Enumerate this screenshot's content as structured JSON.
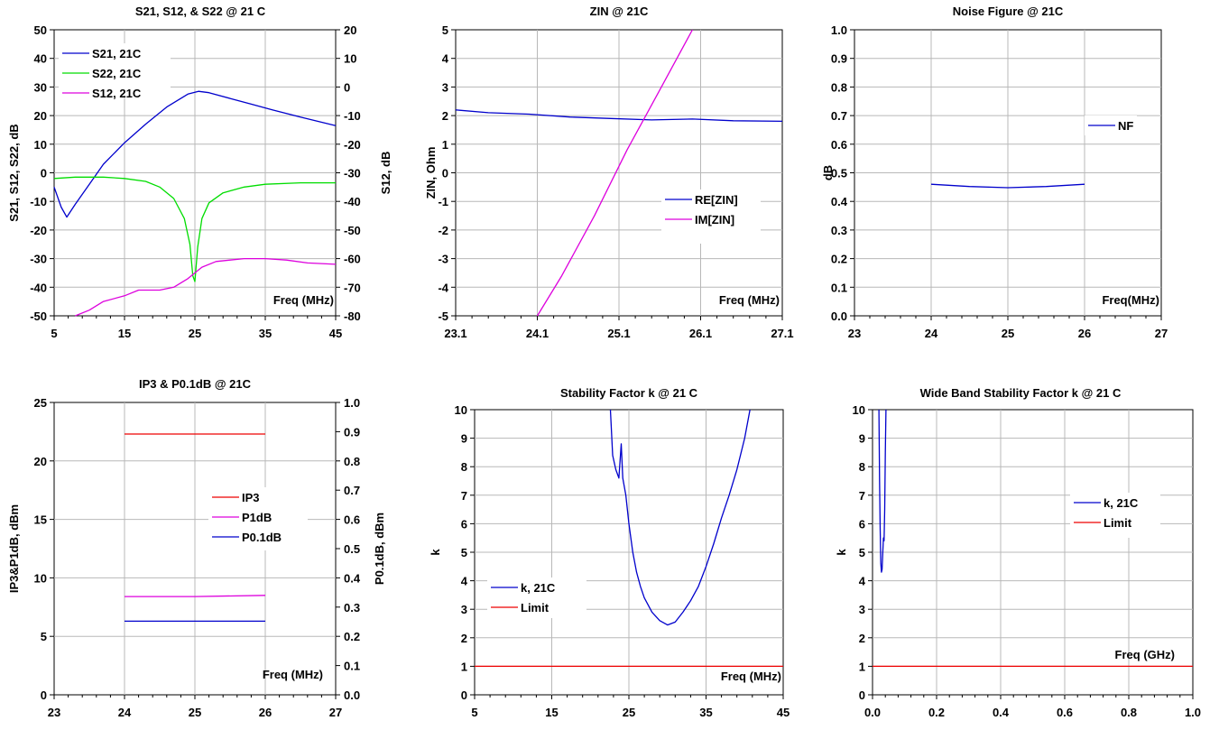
{
  "chart_data": [
    {
      "type": "line",
      "title": "S21, S12, & S22 @ 21 C",
      "xlabel": "Freq (MHz)",
      "ylabel": "S21, S12, S22, dB",
      "y2label": "S12, dB",
      "xlim": [
        5,
        45
      ],
      "xticks": [
        5,
        15,
        25,
        35,
        45
      ],
      "ylim": [
        -50,
        50
      ],
      "yticks": [
        -50,
        -40,
        -30,
        -20,
        -10,
        0,
        10,
        20,
        30,
        40,
        50
      ],
      "y2lim": [
        -80,
        20
      ],
      "y2ticks": [
        -80,
        -70,
        -60,
        -50,
        -40,
        -30,
        -20,
        -10,
        0,
        10,
        20
      ],
      "grid": true,
      "legend_position": "top-left",
      "series": [
        {
          "name": "S21, 21C",
          "color": "#0000cc",
          "axis": "left",
          "x": [
            5,
            6,
            6.8,
            8,
            10,
            12,
            15,
            18,
            21,
            24,
            25.5,
            27,
            30,
            33,
            36,
            40,
            45
          ],
          "y": [
            -5,
            -12,
            -15.5,
            -11,
            -4,
            3,
            10.5,
            17,
            23,
            27.5,
            28.5,
            28,
            26,
            24,
            22,
            19.5,
            16.5
          ]
        },
        {
          "name": "S22, 21C",
          "color": "#00dd00",
          "axis": "left",
          "x": [
            5,
            8,
            10,
            12,
            15,
            18,
            20,
            22,
            23.5,
            24.3,
            24.7,
            25,
            25.4,
            26,
            27,
            29,
            32,
            35,
            40,
            45
          ],
          "y": [
            -2,
            -1.5,
            -1.5,
            -1.5,
            -2,
            -3,
            -5,
            -9,
            -16,
            -25,
            -36,
            -38,
            -26,
            -16,
            -10.5,
            -7,
            -5,
            -4,
            -3.5,
            -3.5
          ]
        },
        {
          "name": "S12, 21C",
          "color": "#dd00dd",
          "axis": "right",
          "x": [
            8,
            10,
            12,
            15,
            17,
            20,
            22,
            24,
            25,
            26,
            28,
            30,
            32,
            35,
            38,
            41,
            45
          ],
          "y": [
            -80,
            -78,
            -75,
            -73,
            -71,
            -71,
            -70,
            -67,
            -65,
            -63,
            -61,
            -60.5,
            -60,
            -60,
            -60.5,
            -61.5,
            -62
          ]
        }
      ]
    },
    {
      "type": "line",
      "title": "ZIN @ 21C",
      "xlabel": "Freq (MHz)",
      "ylabel": "ZIN, Ohm",
      "xlim": [
        23.1,
        27.1
      ],
      "xticks": [
        23.1,
        24.1,
        25.1,
        26.1,
        27.1
      ],
      "ylim": [
        -5,
        5
      ],
      "yticks": [
        -5,
        -4,
        -3,
        -2,
        -1,
        0,
        1,
        2,
        3,
        4,
        5
      ],
      "grid": true,
      "legend_position": "center-right",
      "series": [
        {
          "name": "RE[ZIN]",
          "color": "#0000cc",
          "x": [
            23.1,
            23.5,
            24,
            24.5,
            25,
            25.5,
            26,
            26.5,
            27.1
          ],
          "y": [
            2.2,
            2.1,
            2.05,
            1.95,
            1.9,
            1.85,
            1.88,
            1.82,
            1.8
          ]
        },
        {
          "name": "IM[ZIN]",
          "color": "#dd00dd",
          "x": [
            24.1,
            24.4,
            24.8,
            25.2,
            25.6,
            26.0
          ],
          "y": [
            -5,
            -3.6,
            -1.5,
            0.8,
            2.9,
            5
          ]
        }
      ]
    },
    {
      "type": "line",
      "title": "Noise Figure @ 21C",
      "xlabel": "Freq(MHz)",
      "ylabel": "dB",
      "xlim": [
        23,
        27
      ],
      "xticks": [
        23,
        24,
        25,
        26,
        27
      ],
      "ylim": [
        0,
        1
      ],
      "yticks": [
        0.0,
        0.1,
        0.2,
        0.3,
        0.4,
        0.5,
        0.6,
        0.7,
        0.8,
        0.9,
        1.0
      ],
      "grid": true,
      "legend_position": "top-right",
      "series": [
        {
          "name": "NF",
          "color": "#0000cc",
          "x": [
            24,
            24.5,
            25,
            25.5,
            26
          ],
          "y": [
            0.46,
            0.452,
            0.448,
            0.452,
            0.46
          ]
        }
      ]
    },
    {
      "type": "line",
      "title": "IP3 & P0.1dB  @ 21C",
      "xlabel": "Freq (MHz)",
      "ylabel": "IP3&P1dB, dBm",
      "y2label": "P0.1dB, dBm",
      "xlim": [
        23,
        27
      ],
      "xticks": [
        23,
        24,
        25,
        26,
        27
      ],
      "ylim": [
        0,
        25
      ],
      "yticks": [
        0,
        5,
        10,
        15,
        20,
        25
      ],
      "y2lim": [
        0,
        1
      ],
      "y2ticks": [
        0.0,
        0.1,
        0.2,
        0.3,
        0.4,
        0.5,
        0.6,
        0.7,
        0.8,
        0.9,
        1.0
      ],
      "grid": true,
      "legend_position": "center-right",
      "series": [
        {
          "name": "IP3",
          "color": "#ee0000",
          "axis": "left",
          "x": [
            24,
            25,
            26
          ],
          "y": [
            22.3,
            22.3,
            22.3
          ]
        },
        {
          "name": "P1dB",
          "color": "#dd00dd",
          "axis": "left",
          "x": [
            24,
            25,
            26
          ],
          "y": [
            8.4,
            8.4,
            8.5
          ]
        },
        {
          "name": "P0.1dB",
          "color": "#0000cc",
          "axis": "left",
          "x": [
            24,
            25,
            26
          ],
          "y": [
            6.3,
            6.3,
            6.3
          ]
        }
      ]
    },
    {
      "type": "line",
      "title": "Stability Factor k @ 21 C",
      "xlabel": "Freq (MHz)",
      "ylabel": "k",
      "xlim": [
        5,
        45
      ],
      "xticks": [
        5,
        15,
        25,
        35,
        45
      ],
      "ylim": [
        0,
        10
      ],
      "yticks": [
        0,
        1,
        2,
        3,
        4,
        5,
        6,
        7,
        8,
        9,
        10
      ],
      "grid": true,
      "legend_position": "bottom-left",
      "series": [
        {
          "name": "k, 21C",
          "color": "#0000cc",
          "x": [
            22.6,
            22.9,
            23.3,
            23.7,
            24.0,
            24.2,
            24.4,
            24.6,
            25,
            25.5,
            26,
            26.5,
            27,
            28,
            29,
            30,
            31,
            32,
            33,
            34,
            35,
            36,
            37,
            38,
            39,
            40,
            40.7
          ],
          "y": [
            10,
            8.4,
            7.9,
            7.6,
            8.8,
            7.6,
            7.3,
            7.0,
            6.0,
            5.0,
            4.3,
            3.8,
            3.4,
            2.9,
            2.6,
            2.45,
            2.55,
            2.9,
            3.3,
            3.8,
            4.5,
            5.3,
            6.2,
            7.0,
            7.9,
            9.0,
            10
          ]
        },
        {
          "name": "Limit",
          "color": "#ee0000",
          "x": [
            5,
            45
          ],
          "y": [
            1,
            1
          ]
        }
      ]
    },
    {
      "type": "line",
      "title": "Wide Band Stability Factor k @ 21 C",
      "xlabel": "Freq (GHz)",
      "ylabel": "k",
      "xlim": [
        0,
        1
      ],
      "xticks": [
        0.0,
        0.2,
        0.4,
        0.6,
        0.8,
        1.0
      ],
      "ylim": [
        0,
        10
      ],
      "yticks": [
        0,
        1,
        2,
        3,
        4,
        5,
        6,
        7,
        8,
        9,
        10
      ],
      "grid": true,
      "legend_position": "center-right",
      "series": [
        {
          "name": "k, 21C",
          "color": "#0000cc",
          "x": [
            0.02,
            0.022,
            0.024,
            0.026,
            0.028,
            0.03,
            0.032,
            0.034,
            0.036,
            0.038,
            0.04,
            0.042
          ],
          "y": [
            10,
            7.5,
            5.8,
            4.6,
            4.3,
            4.4,
            5.0,
            5.5,
            5.4,
            6.5,
            8.5,
            10
          ]
        },
        {
          "name": "Limit",
          "color": "#ee0000",
          "x": [
            0,
            1
          ],
          "y": [
            1,
            1
          ]
        }
      ]
    }
  ]
}
